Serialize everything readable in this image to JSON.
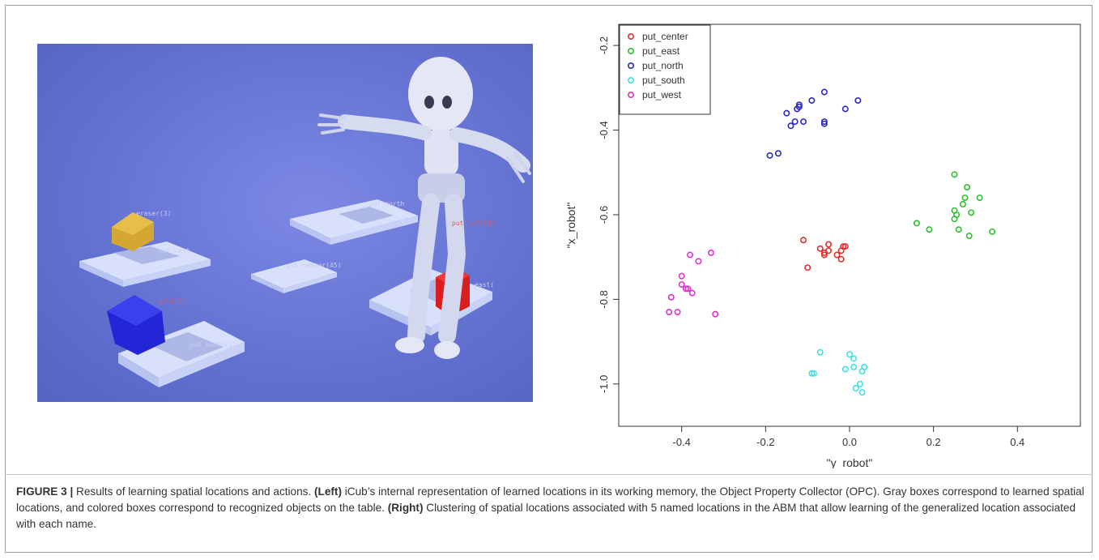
{
  "figure": {
    "left_panel": {
      "overlay_labels": [
        "eraser(3)",
        "put_west",
        "put_north",
        "put_left(35)",
        "put_center(45)",
        "east(",
        "ycle(2)",
        "put_south(1)"
      ]
    },
    "caption": {
      "label": "FIGURE 3 |",
      "text1": " Results of learning spatial locations and actions. ",
      "left_tag": "(Left)",
      "text2": " iCub’s internal representation of learned locations in its working memory, the Object Property Collector (OPC). Gray boxes correspond to learned spatial locations, and colored boxes correspond to recognized objects on the table. ",
      "right_tag": "(Right)",
      "text3": " Clustering of spatial locations associated with 5 named locations in the ABM that allow learning of the generalized location associated with each name."
    }
  },
  "chart_data": {
    "type": "scatter",
    "xlabel": "\"y_robot\"",
    "ylabel": "\"x_robot\"",
    "xlim": [
      -0.55,
      0.55
    ],
    "ylim": [
      -1.1,
      -0.15
    ],
    "y_reversed": true,
    "xticks": [
      "-0.4",
      "-0.2",
      "0.0",
      "0.2",
      "0.4"
    ],
    "xtick_values": [
      -0.4,
      -0.2,
      0.0,
      0.2,
      0.4
    ],
    "yticks": [
      "-0.2",
      "-0.4",
      "-0.6",
      "-0.8",
      "-1.0"
    ],
    "ytick_values": [
      -0.2,
      -0.4,
      -0.6,
      -0.8,
      -1.0
    ],
    "legend_position": "top-left",
    "series": [
      {
        "name": "put_center",
        "color": "#e03030",
        "points": [
          [
            -0.11,
            -0.66
          ],
          [
            -0.1,
            -0.725
          ],
          [
            -0.07,
            -0.68
          ],
          [
            -0.06,
            -0.69
          ],
          [
            -0.05,
            -0.685
          ],
          [
            -0.06,
            -0.695
          ],
          [
            -0.05,
            -0.67
          ],
          [
            -0.03,
            -0.695
          ],
          [
            -0.02,
            -0.685
          ],
          [
            -0.015,
            -0.675
          ],
          [
            -0.01,
            -0.675
          ],
          [
            -0.02,
            -0.705
          ]
        ]
      },
      {
        "name": "put_east",
        "color": "#2ec02e",
        "points": [
          [
            0.16,
            -0.62
          ],
          [
            0.19,
            -0.635
          ],
          [
            0.25,
            -0.505
          ],
          [
            0.25,
            -0.59
          ],
          [
            0.255,
            -0.6
          ],
          [
            0.26,
            -0.635
          ],
          [
            0.27,
            -0.575
          ],
          [
            0.275,
            -0.56
          ],
          [
            0.28,
            -0.535
          ],
          [
            0.285,
            -0.65
          ],
          [
            0.29,
            -0.595
          ],
          [
            0.31,
            -0.56
          ],
          [
            0.34,
            -0.64
          ],
          [
            0.25,
            -0.61
          ]
        ]
      },
      {
        "name": "put_north",
        "color": "#2a2ac8",
        "points": [
          [
            -0.19,
            -0.46
          ],
          [
            -0.17,
            -0.455
          ],
          [
            -0.15,
            -0.36
          ],
          [
            -0.14,
            -0.39
          ],
          [
            -0.13,
            -0.38
          ],
          [
            -0.12,
            -0.34
          ],
          [
            -0.12,
            -0.345
          ],
          [
            -0.11,
            -0.38
          ],
          [
            -0.09,
            -0.33
          ],
          [
            -0.06,
            -0.31
          ],
          [
            -0.06,
            -0.38
          ],
          [
            -0.06,
            -0.385
          ],
          [
            -0.01,
            -0.35
          ],
          [
            0.02,
            -0.33
          ],
          [
            -0.125,
            -0.35
          ]
        ]
      },
      {
        "name": "put_south",
        "color": "#40e0e8",
        "points": [
          [
            -0.09,
            -0.975
          ],
          [
            -0.085,
            -0.975
          ],
          [
            -0.07,
            -0.925
          ],
          [
            -0.01,
            -0.965
          ],
          [
            0.0,
            -0.93
          ],
          [
            0.01,
            -0.94
          ],
          [
            0.01,
            -0.96
          ],
          [
            0.015,
            -1.01
          ],
          [
            0.025,
            -1.0
          ],
          [
            0.03,
            -0.97
          ],
          [
            0.03,
            -1.02
          ],
          [
            0.035,
            -0.96
          ]
        ]
      },
      {
        "name": "put_west",
        "color": "#e030d0",
        "points": [
          [
            -0.43,
            -0.83
          ],
          [
            -0.425,
            -0.795
          ],
          [
            -0.41,
            -0.83
          ],
          [
            -0.4,
            -0.745
          ],
          [
            -0.4,
            -0.765
          ],
          [
            -0.39,
            -0.775
          ],
          [
            -0.385,
            -0.775
          ],
          [
            -0.38,
            -0.695
          ],
          [
            -0.375,
            -0.785
          ],
          [
            -0.36,
            -0.71
          ],
          [
            -0.33,
            -0.69
          ],
          [
            -0.32,
            -0.835
          ]
        ]
      }
    ]
  }
}
